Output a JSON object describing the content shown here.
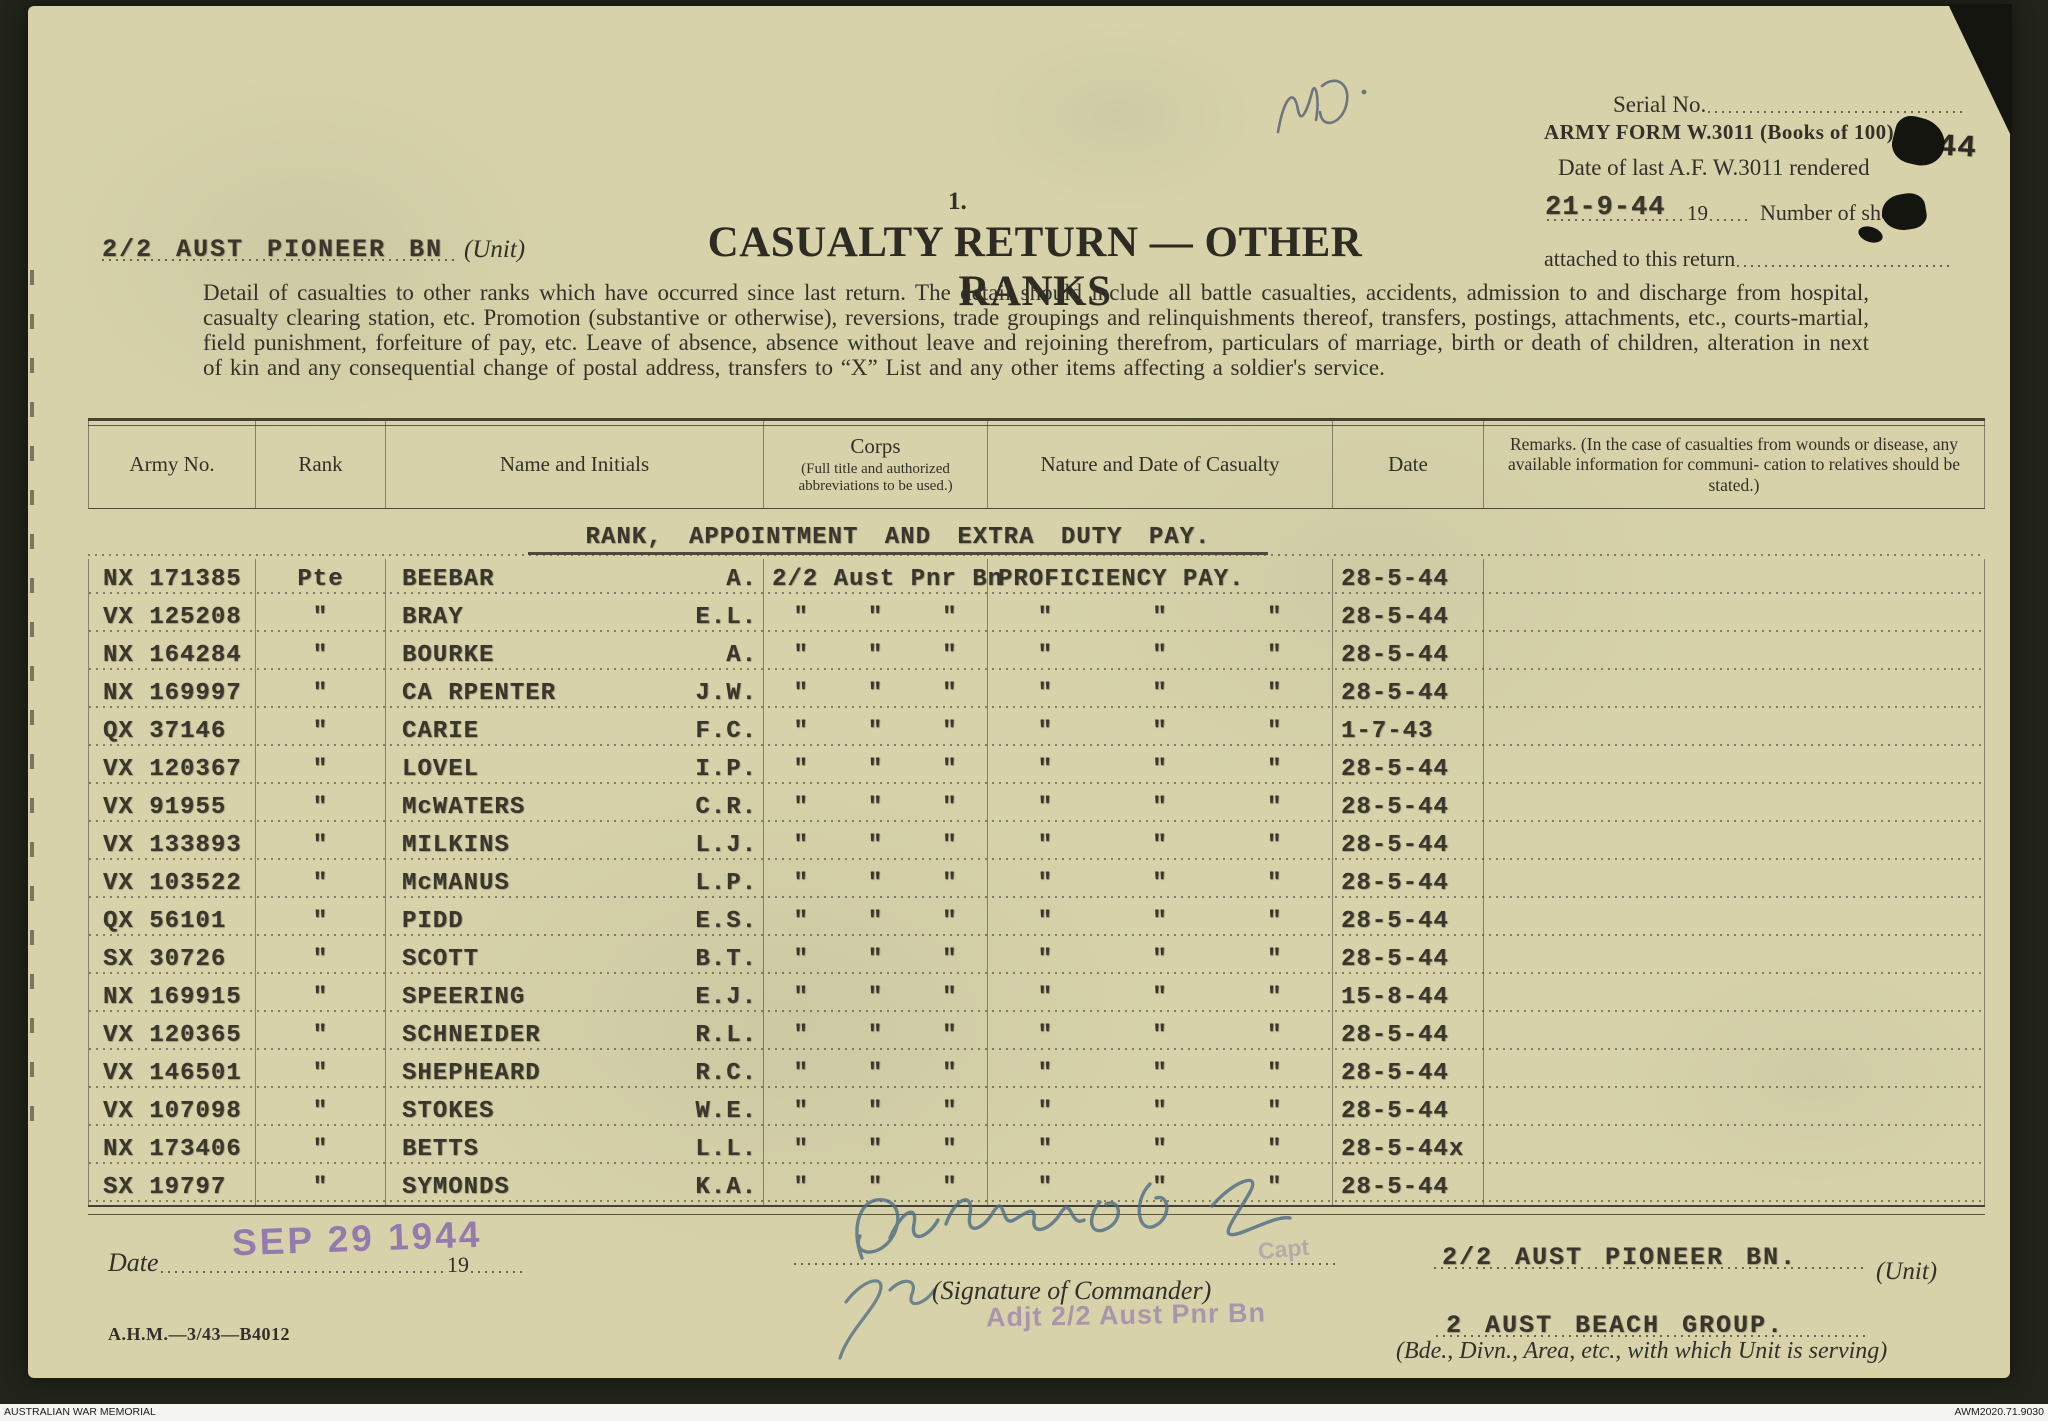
{
  "meta": {
    "serial_label": "Serial No.",
    "form_name": "ARMY FORM W.3011 (Books of 100)",
    "date_last_label": "Date of last A.F. W.3011 rendered",
    "date_last_value": "21-9-44",
    "year_prefix": "19",
    "sheets_label": "Number of sheets",
    "attached_label": "attached to this return",
    "stamp_fragment": "/44",
    "page_number": "1.",
    "pencil_note": "WD."
  },
  "header": {
    "unit_value": "2/2 AUST PIONEER BN",
    "unit_label": "(Unit)",
    "title": "CASUALTY RETURN — OTHER RANKS",
    "instructions": "Detail of casualties to other ranks which have occurred since last return.  The detail should include all battle casualties, accidents, admission to and discharge from hospital, casualty clearing station, etc.  Promotion (substantive or otherwise), reversions, trade groupings and relinquishments thereof, transfers, postings, attachments, etc., courts-martial, field punishment, forfeiture of pay, etc.  Leave of absence, absence without leave and rejoining therefrom, particulars of marriage, birth or death of children, alteration in next of kin and any consequential change of postal address, transfers to “X” List and any other items affecting a soldier's service."
  },
  "table": {
    "columns": [
      "Army No.",
      "Rank",
      "Name and Initials",
      "Corps",
      "Nature and Date of Casualty",
      "Date"
    ],
    "corps_sub": "(Full title and authorized abbreviations to be used.)",
    "remarks_header": "Remarks.  (In the case of casualties from wounds or disease, any available information for communi- cation to relatives should be stated.)",
    "section_heading": "RANK, APPOINTMENT AND EXTRA DUTY PAY.",
    "rows": [
      {
        "army_no": "NX 171385",
        "rank": "Pte",
        "name": "BEEBAR",
        "initials": "A.",
        "corps": [
          "2/2 Aust Pnr Bn"
        ],
        "nature": [
          "PROFICIENCY PAY."
        ],
        "date": "28-5-44"
      },
      {
        "army_no": "VX 125208",
        "rank": "\"",
        "name": "BRAY",
        "initials": "E.L.",
        "corps": [
          "\"",
          "\"",
          "\""
        ],
        "nature": [
          "\"",
          "\"",
          "\""
        ],
        "date": "28-5-44"
      },
      {
        "army_no": "NX 164284",
        "rank": "\"",
        "name": "BOURKE",
        "initials": "A.",
        "corps": [
          "\"",
          "\"",
          "\""
        ],
        "nature": [
          "\"",
          "\"",
          "\""
        ],
        "date": "28-5-44"
      },
      {
        "army_no": "NX 169997",
        "rank": "\"",
        "name": "CA RPENTER",
        "initials": "J.W.",
        "corps": [
          "\"",
          "\"",
          "\""
        ],
        "nature": [
          "\"",
          "\"",
          "\""
        ],
        "date": "28-5-44"
      },
      {
        "army_no": "QX 37146",
        "rank": "\"",
        "name": "CARIE",
        "initials": "F.C.",
        "corps": [
          "\"",
          "\"",
          "\""
        ],
        "nature": [
          "\"",
          "\"",
          "\""
        ],
        "date": "1-7-43"
      },
      {
        "army_no": "VX 120367",
        "rank": "\"",
        "name": "LOVEL",
        "initials": "I.P.",
        "corps": [
          "\"",
          "\"",
          "\""
        ],
        "nature": [
          "\"",
          "\"",
          "\""
        ],
        "date": "28-5-44"
      },
      {
        "army_no": "VX 91955",
        "rank": "\"",
        "name": "McWATERS",
        "initials": "C.R.",
        "corps": [
          "\"",
          "\"",
          "\""
        ],
        "nature": [
          "\"",
          "\"",
          "\""
        ],
        "date": "28-5-44"
      },
      {
        "army_no": "VX 133893",
        "rank": "\"",
        "name": "MILKINS",
        "initials": "L.J.",
        "corps": [
          "\"",
          "\"",
          "\""
        ],
        "nature": [
          "\"",
          "\"",
          "\""
        ],
        "date": "28-5-44"
      },
      {
        "army_no": "VX 103522",
        "rank": "\"",
        "name": "McMANUS",
        "initials": "L.P.",
        "corps": [
          "\"",
          "\"",
          "\""
        ],
        "nature": [
          "\"",
          "\"",
          "\""
        ],
        "date": "28-5-44"
      },
      {
        "army_no": "QX 56101",
        "rank": "\"",
        "name": "PIDD",
        "initials": "E.S.",
        "corps": [
          "\"",
          "\"",
          "\""
        ],
        "nature": [
          "\"",
          "\"",
          "\""
        ],
        "date": "28-5-44"
      },
      {
        "army_no": "SX 30726",
        "rank": "\"",
        "name": "SCOTT",
        "initials": "B.T.",
        "corps": [
          "\"",
          "\"",
          "\""
        ],
        "nature": [
          "\"",
          "\"",
          "\""
        ],
        "date": "28-5-44"
      },
      {
        "army_no": "NX 169915",
        "rank": "\"",
        "name": "SPEERING",
        "initials": "E.J.",
        "corps": [
          "\"",
          "\"",
          "\""
        ],
        "nature": [
          "\"",
          "\"",
          "\""
        ],
        "date": "15-8-44"
      },
      {
        "army_no": "VX 120365",
        "rank": "\"",
        "name": "SCHNEIDER",
        "initials": "R.L.",
        "corps": [
          "\"",
          "\"",
          "\""
        ],
        "nature": [
          "\"",
          "\"",
          "\""
        ],
        "date": "28-5-44"
      },
      {
        "army_no": "VX 146501",
        "rank": "\"",
        "name": "SHEPHEARD",
        "initials": "R.C.",
        "corps": [
          "\"",
          "\"",
          "\""
        ],
        "nature": [
          "\"",
          "\"",
          "\""
        ],
        "date": "28-5-44"
      },
      {
        "army_no": "VX 107098",
        "rank": "\"",
        "name": "STOKES",
        "initials": "W.E.",
        "corps": [
          "\"",
          "\"",
          "\""
        ],
        "nature": [
          "\"",
          "\"",
          "\""
        ],
        "date": "28-5-44"
      },
      {
        "army_no": "NX 173406",
        "rank": "\"",
        "name": "BETTS",
        "initials": "L.L.",
        "corps": [
          "\"",
          "\"",
          "\""
        ],
        "nature": [
          "\"",
          "\"",
          "\""
        ],
        "date": "28-5-44x"
      },
      {
        "army_no": "SX 19797",
        "rank": "\"",
        "name": "SYMONDS",
        "initials": "K.A.",
        "corps": [
          "\"",
          "\"",
          "\""
        ],
        "nature": [
          "\"",
          "\"",
          "\""
        ],
        "date": "28-5-44"
      }
    ]
  },
  "footer": {
    "date_label": "Date",
    "date_stamp": "SEP 29 1944",
    "year_prefix": "19",
    "signature_label": "(Signature of Commander)",
    "rank_stamp": "Capt",
    "adjutant_stamp": "Adjt 2/2 Aust Pnr Bn",
    "unit_value": "2/2 AUST PIONEER BN.",
    "unit_label": "(Unit)",
    "group_value": "2 AUST BEACH GROUP.",
    "group_label": "(Bde., Divn., Area, etc., with which Unit is serving)",
    "form_reference": "A.H.M.—3/43—B4012"
  },
  "archive_bar": {
    "left": "AUSTRALIAN WAR MEMORIAL",
    "right": "AWM2020.71.9030"
  },
  "colors": {
    "paper": "#d7d2a9",
    "ink": "#33302a",
    "typewriter": "#3b362c",
    "stamp_purple": "#8d6fae",
    "signature_blue": "#4f6e84",
    "backdrop": "#22241b"
  }
}
